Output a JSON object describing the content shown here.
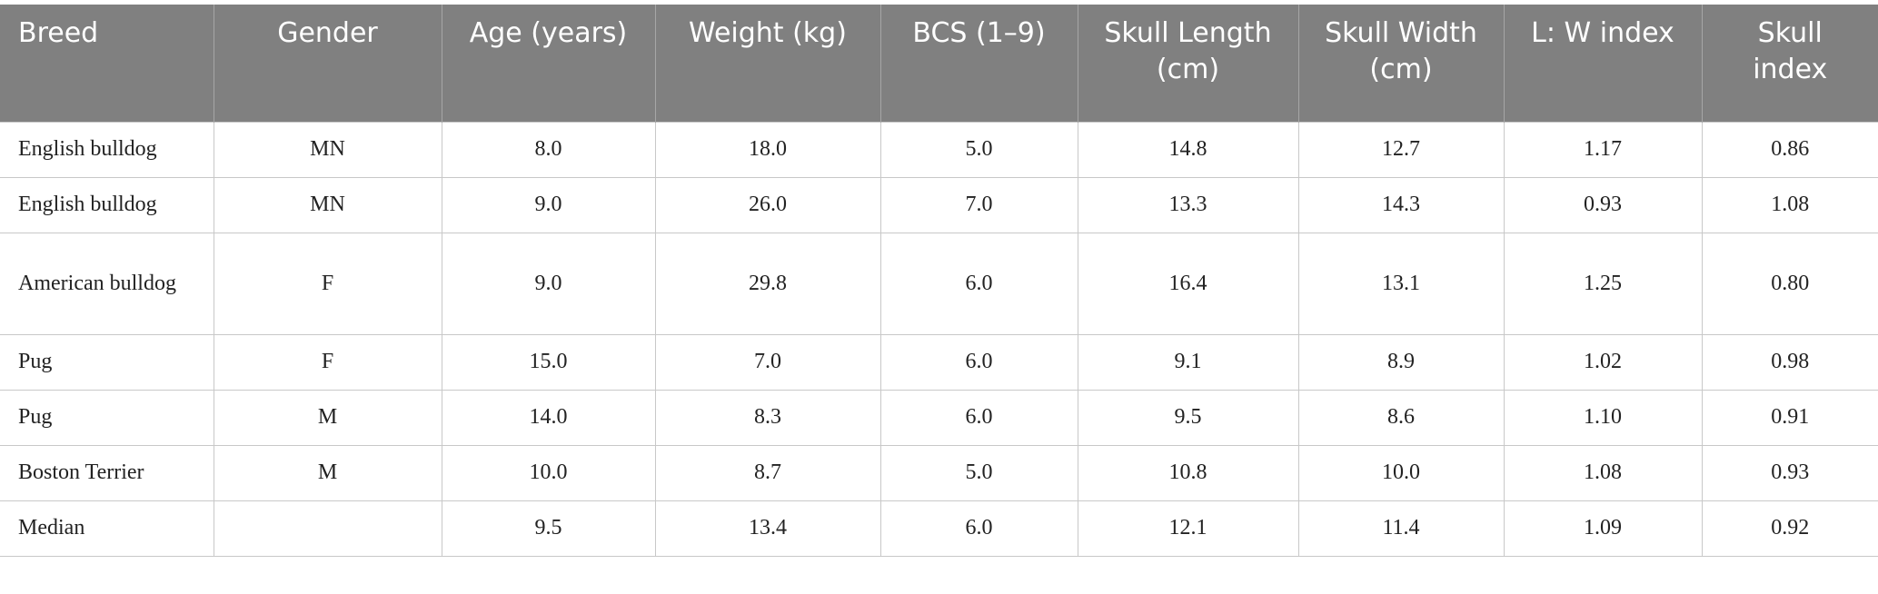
{
  "table": {
    "header": [
      "Breed",
      "Gender",
      "Age (years)",
      "Weight (kg)",
      "BCS (1–9)",
      "Skull Length (cm)",
      "Skull Width (cm)",
      "L: W index",
      "Skull index"
    ],
    "rows": [
      [
        "English bulldog",
        "MN",
        "8.0",
        "18.0",
        "5.0",
        "14.8",
        "12.7",
        "1.17",
        "0.86"
      ],
      [
        "English bulldog",
        "MN",
        "9.0",
        "26.0",
        "7.0",
        "13.3",
        "14.3",
        "0.93",
        "1.08"
      ],
      [
        "American bulldog",
        "F",
        "9.0",
        "29.8",
        "6.0",
        "16.4",
        "13.1",
        "1.25",
        "0.80"
      ],
      [
        "Pug",
        "F",
        "15.0",
        "7.0",
        "6.0",
        "9.1",
        "8.9",
        "1.02",
        "0.98"
      ],
      [
        "Pug",
        "M",
        "14.0",
        "8.3",
        "6.0",
        "9.5",
        "8.6",
        "1.10",
        "0.91"
      ],
      [
        "Boston Terrier",
        "M",
        "10.0",
        "8.7",
        "5.0",
        "10.8",
        "10.0",
        "1.08",
        "0.93"
      ],
      [
        "Median",
        null,
        "9.5",
        "13.4",
        "6.0",
        "12.1",
        "11.4",
        "1.09",
        "0.92"
      ]
    ]
  }
}
